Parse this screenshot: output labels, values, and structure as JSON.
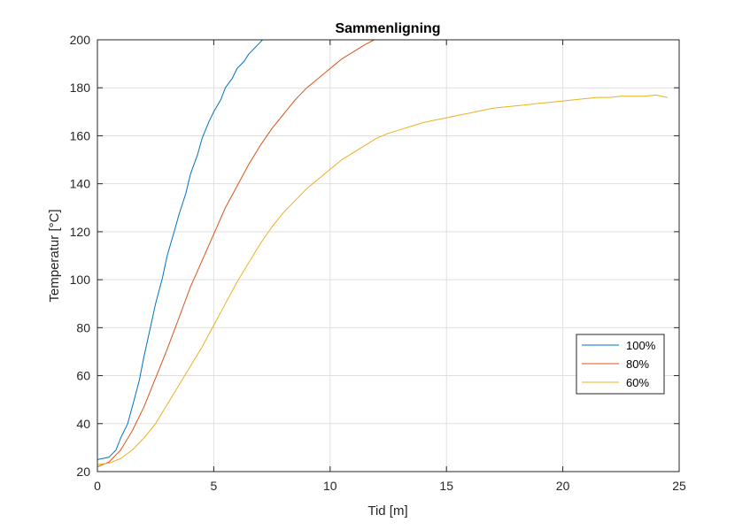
{
  "chart_data": {
    "type": "line",
    "title": "Sammenligning",
    "xlabel": "Tid [m]",
    "ylabel": "Temperatur [°C]",
    "xlim": [
      0,
      25
    ],
    "ylim": [
      20,
      200
    ],
    "xticks": [
      0,
      5,
      10,
      15,
      20,
      25
    ],
    "yticks": [
      20,
      40,
      60,
      80,
      100,
      120,
      140,
      160,
      180,
      200
    ],
    "xtick_labels": [
      "0",
      "5",
      "10",
      "15",
      "20",
      "25"
    ],
    "ytick_labels": [
      "20",
      "40",
      "60",
      "80",
      "100",
      "120",
      "140",
      "160",
      "180",
      "200"
    ],
    "grid": true,
    "legend_position": "lower-right",
    "series": [
      {
        "name": "100%",
        "color": "#0072BD",
        "x": [
          0,
          0.5,
          0.8,
          1.0,
          1.3,
          1.5,
          1.8,
          2.0,
          2.3,
          2.5,
          2.8,
          3.0,
          3.3,
          3.5,
          3.8,
          4.0,
          4.3,
          4.5,
          4.8,
          5.0,
          5.3,
          5.5,
          5.8,
          6.0,
          6.3,
          6.5,
          6.8,
          7.0,
          7.1
        ],
        "y": [
          25,
          26,
          29,
          34,
          40,
          47,
          58,
          68,
          81,
          90,
          101,
          110,
          120,
          127,
          136,
          144,
          152,
          159,
          166,
          170,
          175,
          180,
          184,
          188,
          191,
          194,
          197,
          199,
          200
        ]
      },
      {
        "name": "80%",
        "color": "#D95319",
        "x": [
          0,
          0.5,
          1.0,
          1.5,
          2.0,
          2.5,
          3.0,
          3.5,
          4.0,
          4.5,
          5.0,
          5.5,
          6.0,
          6.5,
          7.0,
          7.5,
          8.0,
          8.5,
          9.0,
          9.5,
          10.0,
          10.5,
          11.0,
          11.5,
          11.9
        ],
        "y": [
          22,
          24,
          29,
          37,
          47,
          59,
          71,
          84,
          97,
          108,
          119,
          130,
          139,
          148,
          156,
          163,
          169,
          175,
          180,
          184,
          188,
          192,
          195,
          198,
          200
        ]
      },
      {
        "name": "60%",
        "color": "#EDB120",
        "x": [
          0,
          0.5,
          1.0,
          1.5,
          2.0,
          2.5,
          3.0,
          3.5,
          4.0,
          4.5,
          5.0,
          5.5,
          6.0,
          6.5,
          7.0,
          7.5,
          8.0,
          8.5,
          9.0,
          9.5,
          10.0,
          10.5,
          11.0,
          11.5,
          12.0,
          12.5,
          13.0,
          13.5,
          14.0,
          14.5,
          15.0,
          15.5,
          16.0,
          16.5,
          17.0,
          17.5,
          18.0,
          18.5,
          19.0,
          19.5,
          20.0,
          20.5,
          21.0,
          21.5,
          22.0,
          22.5,
          23.0,
          23.5,
          24.0,
          24.5
        ],
        "y": [
          23,
          23.5,
          25.5,
          29,
          34,
          40,
          48,
          56,
          64,
          72,
          81,
          90,
          99,
          107,
          115,
          122,
          128,
          133,
          138,
          142,
          146,
          150,
          153,
          156,
          159,
          161,
          162.5,
          164,
          165.5,
          166.5,
          167.5,
          168.5,
          169.5,
          170.5,
          171.5,
          172,
          172.5,
          173,
          173.5,
          174,
          174.5,
          175,
          175.5,
          176,
          176,
          176.5,
          176.5,
          176.5,
          177,
          176
        ]
      }
    ]
  }
}
